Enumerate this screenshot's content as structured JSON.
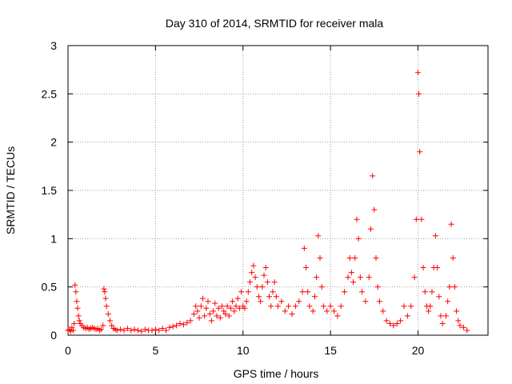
{
  "chart_data": {
    "type": "scatter",
    "title": "Day 310 of 2014, SRMTID for receiver mala",
    "xlabel": "GPS time / hours",
    "ylabel": "SRMTID / TECUs",
    "xlim": [
      0,
      24
    ],
    "ylim": [
      0,
      3
    ],
    "xticks": [
      0,
      5,
      10,
      15,
      20
    ],
    "xtick_labels": [
      "0",
      "5",
      "10",
      "15",
      "20"
    ],
    "yticks": [
      0,
      0.5,
      1,
      1.5,
      2,
      2.5,
      3
    ],
    "ytick_labels": [
      "0",
      "0.5",
      "1",
      "1.5",
      "2",
      "2.5",
      "3"
    ],
    "grid": true,
    "marker": "plus",
    "color": "#ff0000",
    "series": [
      {
        "name": "SRMTID",
        "points": [
          [
            0.0,
            0.05
          ],
          [
            0.08,
            0.06
          ],
          [
            0.15,
            0.04
          ],
          [
            0.22,
            0.08
          ],
          [
            0.3,
            0.05
          ],
          [
            0.35,
            0.12
          ],
          [
            0.4,
            0.52
          ],
          [
            0.45,
            0.45
          ],
          [
            0.5,
            0.35
          ],
          [
            0.55,
            0.28
          ],
          [
            0.6,
            0.2
          ],
          [
            0.65,
            0.15
          ],
          [
            0.7,
            0.12
          ],
          [
            0.8,
            0.1
          ],
          [
            0.9,
            0.08
          ],
          [
            1.0,
            0.07
          ],
          [
            1.1,
            0.08
          ],
          [
            1.2,
            0.06
          ],
          [
            1.3,
            0.07
          ],
          [
            1.4,
            0.08
          ],
          [
            1.5,
            0.07
          ],
          [
            1.6,
            0.06
          ],
          [
            1.7,
            0.07
          ],
          [
            1.8,
            0.05
          ],
          [
            1.9,
            0.06
          ],
          [
            2.0,
            0.1
          ],
          [
            2.05,
            0.48
          ],
          [
            2.1,
            0.45
          ],
          [
            2.15,
            0.38
          ],
          [
            2.2,
            0.3
          ],
          [
            2.3,
            0.22
          ],
          [
            2.4,
            0.15
          ],
          [
            2.5,
            0.1
          ],
          [
            2.6,
            0.07
          ],
          [
            2.7,
            0.06
          ],
          [
            2.8,
            0.05
          ],
          [
            3.0,
            0.06
          ],
          [
            3.2,
            0.05
          ],
          [
            3.4,
            0.07
          ],
          [
            3.6,
            0.05
          ],
          [
            3.8,
            0.06
          ],
          [
            4.0,
            0.05
          ],
          [
            4.2,
            0.04
          ],
          [
            4.4,
            0.06
          ],
          [
            4.6,
            0.05
          ],
          [
            4.8,
            0.05
          ],
          [
            5.0,
            0.06
          ],
          [
            5.2,
            0.05
          ],
          [
            5.4,
            0.07
          ],
          [
            5.6,
            0.05
          ],
          [
            5.8,
            0.08
          ],
          [
            6.0,
            0.09
          ],
          [
            6.2,
            0.1
          ],
          [
            6.4,
            0.12
          ],
          [
            6.6,
            0.11
          ],
          [
            6.8,
            0.13
          ],
          [
            7.0,
            0.15
          ],
          [
            7.2,
            0.22
          ],
          [
            7.3,
            0.3
          ],
          [
            7.4,
            0.25
          ],
          [
            7.5,
            0.18
          ],
          [
            7.6,
            0.3
          ],
          [
            7.7,
            0.38
          ],
          [
            7.8,
            0.2
          ],
          [
            7.9,
            0.28
          ],
          [
            8.0,
            0.35
          ],
          [
            8.1,
            0.22
          ],
          [
            8.2,
            0.15
          ],
          [
            8.3,
            0.25
          ],
          [
            8.4,
            0.33
          ],
          [
            8.5,
            0.2
          ],
          [
            8.6,
            0.28
          ],
          [
            8.7,
            0.18
          ],
          [
            8.8,
            0.3
          ],
          [
            8.9,
            0.25
          ],
          [
            9.0,
            0.22
          ],
          [
            9.1,
            0.3
          ],
          [
            9.2,
            0.2
          ],
          [
            9.3,
            0.28
          ],
          [
            9.4,
            0.35
          ],
          [
            9.5,
            0.25
          ],
          [
            9.6,
            0.3
          ],
          [
            9.7,
            0.38
          ],
          [
            9.8,
            0.28
          ],
          [
            9.9,
            0.45
          ],
          [
            10.0,
            0.3
          ],
          [
            10.1,
            0.28
          ],
          [
            10.2,
            0.35
          ],
          [
            10.3,
            0.45
          ],
          [
            10.4,
            0.55
          ],
          [
            10.5,
            0.65
          ],
          [
            10.6,
            0.72
          ],
          [
            10.7,
            0.6
          ],
          [
            10.8,
            0.5
          ],
          [
            10.9,
            0.4
          ],
          [
            11.0,
            0.35
          ],
          [
            11.1,
            0.5
          ],
          [
            11.2,
            0.62
          ],
          [
            11.3,
            0.7
          ],
          [
            11.4,
            0.55
          ],
          [
            11.5,
            0.4
          ],
          [
            11.6,
            0.3
          ],
          [
            11.7,
            0.45
          ],
          [
            11.8,
            0.55
          ],
          [
            11.9,
            0.4
          ],
          [
            12.0,
            0.3
          ],
          [
            12.2,
            0.35
          ],
          [
            12.4,
            0.25
          ],
          [
            12.6,
            0.3
          ],
          [
            12.8,
            0.22
          ],
          [
            13.0,
            0.3
          ],
          [
            13.2,
            0.35
          ],
          [
            13.4,
            0.45
          ],
          [
            13.5,
            0.9
          ],
          [
            13.6,
            0.7
          ],
          [
            13.7,
            0.45
          ],
          [
            13.8,
            0.3
          ],
          [
            14.0,
            0.25
          ],
          [
            14.1,
            0.4
          ],
          [
            14.2,
            0.6
          ],
          [
            14.3,
            1.03
          ],
          [
            14.4,
            0.8
          ],
          [
            14.5,
            0.5
          ],
          [
            14.6,
            0.3
          ],
          [
            14.8,
            0.25
          ],
          [
            15.0,
            0.3
          ],
          [
            15.2,
            0.25
          ],
          [
            15.4,
            0.2
          ],
          [
            15.6,
            0.3
          ],
          [
            15.8,
            0.45
          ],
          [
            16.0,
            0.6
          ],
          [
            16.1,
            0.8
          ],
          [
            16.2,
            0.65
          ],
          [
            16.3,
            0.55
          ],
          [
            16.4,
            0.8
          ],
          [
            16.5,
            1.2
          ],
          [
            16.6,
            1.0
          ],
          [
            16.7,
            0.6
          ],
          [
            16.8,
            0.45
          ],
          [
            17.0,
            0.35
          ],
          [
            17.2,
            0.6
          ],
          [
            17.3,
            1.1
          ],
          [
            17.4,
            1.65
          ],
          [
            17.5,
            1.3
          ],
          [
            17.6,
            0.8
          ],
          [
            17.7,
            0.5
          ],
          [
            17.8,
            0.35
          ],
          [
            18.0,
            0.25
          ],
          [
            18.2,
            0.15
          ],
          [
            18.4,
            0.12
          ],
          [
            18.6,
            0.1
          ],
          [
            18.8,
            0.12
          ],
          [
            19.0,
            0.15
          ],
          [
            19.2,
            0.3
          ],
          [
            19.4,
            0.2
          ],
          [
            19.6,
            0.3
          ],
          [
            19.8,
            0.6
          ],
          [
            19.9,
            1.2
          ],
          [
            20.0,
            2.72
          ],
          [
            20.05,
            2.5
          ],
          [
            20.1,
            1.9
          ],
          [
            20.2,
            1.2
          ],
          [
            20.3,
            0.7
          ],
          [
            20.4,
            0.45
          ],
          [
            20.5,
            0.3
          ],
          [
            20.6,
            0.25
          ],
          [
            20.7,
            0.3
          ],
          [
            20.8,
            0.45
          ],
          [
            20.9,
            0.7
          ],
          [
            21.0,
            1.03
          ],
          [
            21.1,
            0.7
          ],
          [
            21.2,
            0.4
          ],
          [
            21.3,
            0.2
          ],
          [
            21.4,
            0.12
          ],
          [
            21.6,
            0.2
          ],
          [
            21.7,
            0.35
          ],
          [
            21.8,
            0.5
          ],
          [
            21.9,
            1.15
          ],
          [
            22.0,
            0.8
          ],
          [
            22.1,
            0.5
          ],
          [
            22.2,
            0.25
          ],
          [
            22.3,
            0.15
          ],
          [
            22.4,
            0.1
          ],
          [
            22.6,
            0.08
          ],
          [
            22.8,
            0.05
          ]
        ]
      }
    ]
  }
}
